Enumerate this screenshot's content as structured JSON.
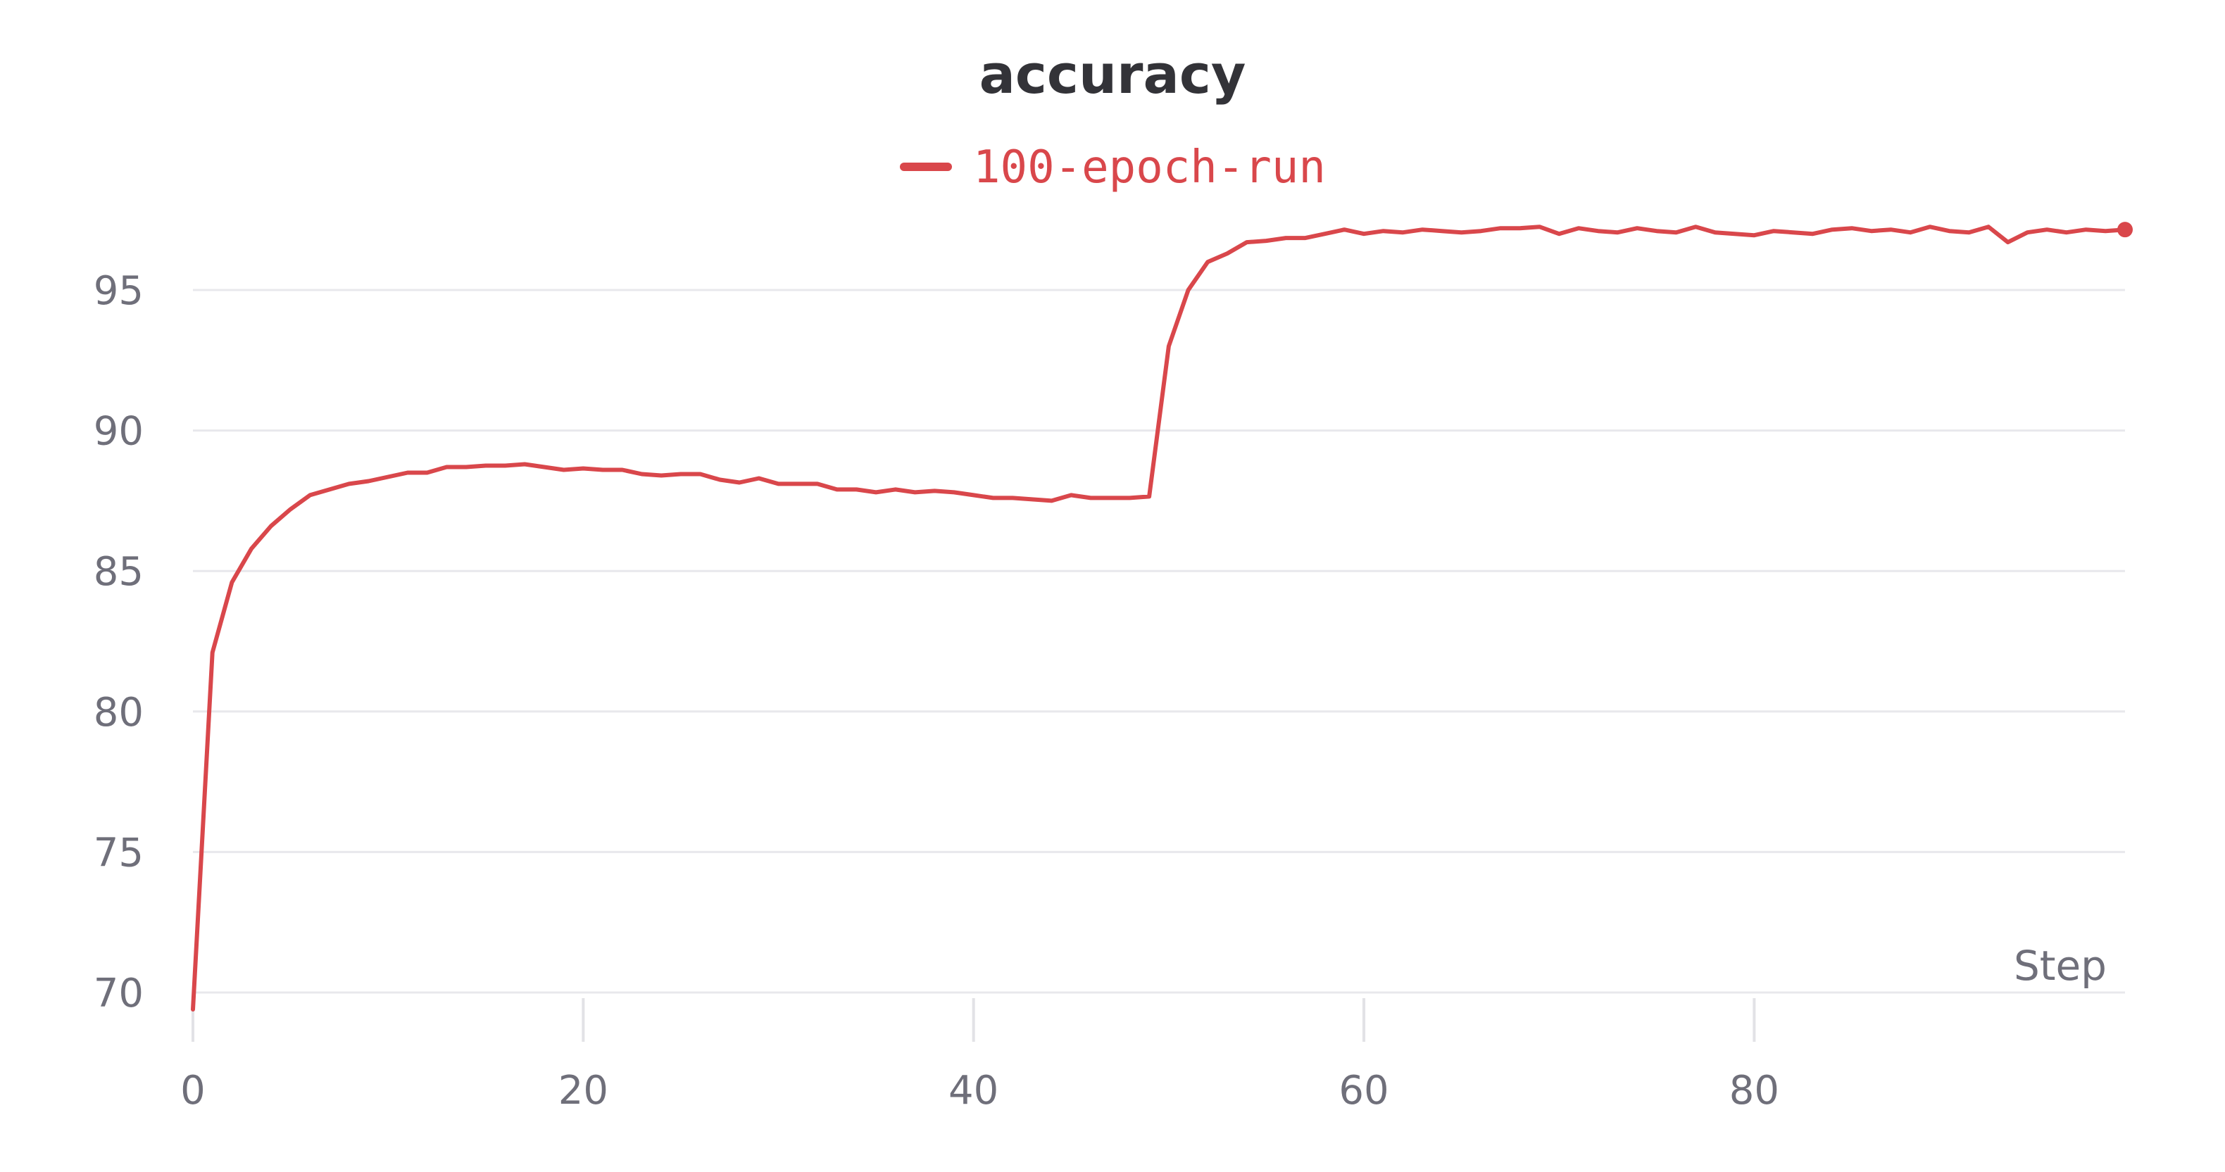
{
  "chart_data": {
    "type": "line",
    "title": "accuracy",
    "xlabel": "Step",
    "ylabel": "",
    "xlim": [
      0,
      99
    ],
    "ylim": [
      69,
      97.5
    ],
    "xticks": [
      0,
      20,
      40,
      60,
      80
    ],
    "yticks": [
      70,
      75,
      80,
      85,
      90,
      95
    ],
    "grid": true,
    "legend_position": "top-center",
    "series": [
      {
        "name": "100-epoch-run",
        "color": "#d9474b",
        "x": [
          0,
          1,
          2,
          3,
          4,
          5,
          6,
          7,
          8,
          9,
          10,
          11,
          12,
          13,
          14,
          15,
          16,
          17,
          18,
          19,
          20,
          21,
          22,
          23,
          24,
          25,
          26,
          27,
          28,
          29,
          30,
          31,
          32,
          33,
          34,
          35,
          36,
          37,
          38,
          39,
          40,
          41,
          42,
          43,
          44,
          45,
          46,
          47,
          48,
          49,
          50,
          51,
          52,
          53,
          54,
          55,
          56,
          57,
          58,
          59,
          60,
          61,
          62,
          63,
          64,
          65,
          66,
          67,
          68,
          69,
          70,
          71,
          72,
          73,
          74,
          75,
          76,
          77,
          78,
          79,
          80,
          81,
          82,
          83,
          84,
          85,
          86,
          87,
          88,
          89,
          90,
          91,
          92,
          93,
          94,
          95,
          96,
          97,
          98,
          99
        ],
        "y": [
          69.4,
          82.1,
          84.6,
          85.8,
          86.6,
          87.2,
          87.7,
          87.9,
          88.1,
          88.2,
          88.35,
          88.5,
          88.5,
          88.7,
          88.7,
          88.75,
          88.75,
          88.8,
          88.7,
          88.6,
          88.65,
          88.6,
          88.6,
          88.45,
          88.4,
          88.45,
          88.45,
          88.25,
          88.15,
          88.3,
          88.1,
          88.1,
          88.1,
          87.9,
          87.9,
          87.8,
          87.9,
          87.8,
          87.85,
          87.8,
          87.7,
          87.6,
          87.6,
          87.55,
          87.5,
          87.7,
          87.6,
          87.6,
          87.6,
          87.65,
          93.0,
          95.0,
          96.0,
          96.3,
          96.7,
          96.75,
          96.85,
          96.85,
          97.0,
          97.15,
          97.0,
          97.1,
          97.05,
          97.15,
          97.1,
          97.05,
          97.1,
          97.2,
          97.2,
          97.25,
          97.0,
          97.2,
          97.1,
          97.05,
          97.2,
          97.1,
          97.05,
          97.25,
          97.05,
          97.0,
          96.95,
          97.1,
          97.05,
          97.0,
          97.15,
          97.2,
          97.1,
          97.15,
          97.05,
          97.25,
          97.1,
          97.05,
          97.25,
          96.7,
          97.05,
          97.15,
          97.05,
          97.15,
          97.1,
          97.15
        ]
      }
    ]
  }
}
